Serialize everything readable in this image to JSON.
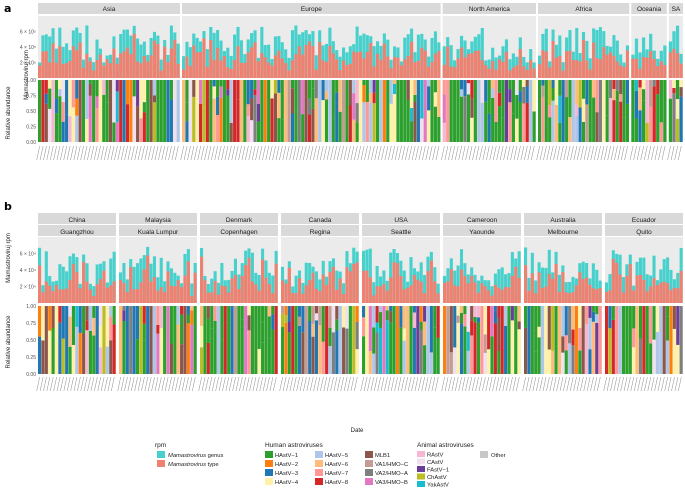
{
  "chart_data": [
    {
      "panel_label": "a",
      "type": "bar",
      "facets": [
        "Asia",
        "Europe",
        "North America",
        "Africa",
        "Oceania",
        "SA"
      ],
      "top": {
        "ylabel": "Mamastroviruj rpm",
        "yticks": [
          "2 × 10⁵",
          "4 × 10⁵",
          "6 × 10⁵"
        ],
        "series": [
          "Mamastrovirus genus",
          "Mamastrovirus type"
        ]
      },
      "bottom": {
        "ylabel": "Relative abundance",
        "yticks": [
          "0.00",
          "0.25",
          "0.50",
          "0.75",
          "1.00"
        ]
      }
    },
    {
      "panel_label": "b",
      "type": "bar",
      "facets": [
        {
          "country": "China",
          "city": "Guangzhou"
        },
        {
          "country": "Malaysia",
          "city": "Kuala Lumpur"
        },
        {
          "country": "Denmark",
          "city": "Copenhagen"
        },
        {
          "country": "Canada",
          "city": "Regina"
        },
        {
          "country": "USA",
          "city": "Seattle"
        },
        {
          "country": "Cameroon",
          "city": "Yaounde"
        },
        {
          "country": "Australia",
          "city": "Melbourne"
        },
        {
          "country": "Ecuador",
          "city": "Quito"
        }
      ],
      "top": {
        "ylabel": "Mamastroviruj rpm",
        "yticks": [
          "2 × 10⁴",
          "4 × 10⁴",
          "6 × 10⁴"
        ]
      },
      "bottom": {
        "ylabel": "Relative abundance",
        "yticks": [
          "0.00",
          "0.25",
          "0.50",
          "0.75",
          "1.00"
        ]
      },
      "xlabel": "Date"
    }
  ],
  "legend": {
    "rpm_title": "rpm",
    "rpm_items": [
      {
        "prefix": "",
        "italic": "Mamastrovirus",
        "suffix": " genus",
        "color": "#48d1cc"
      },
      {
        "prefix": "",
        "italic": "Mamastrovirus",
        "suffix": " type",
        "color": "#f08070"
      }
    ],
    "human_title": "Human astroviruses",
    "human_items": [
      {
        "label": "HAstV−1",
        "color": "#2ca02c"
      },
      {
        "label": "HAstV−2",
        "color": "#ff7f0e"
      },
      {
        "label": "HAstV−3",
        "color": "#1f77b4"
      },
      {
        "label": "HAstV−4",
        "color": "#fff2a8"
      },
      {
        "label": "HAstV−5",
        "color": "#aec7e8"
      },
      {
        "label": "HAstV−6",
        "color": "#ffbb78"
      },
      {
        "label": "HAstV−7",
        "color": "#ff9896"
      },
      {
        "label": "HAstV−8",
        "color": "#d62728"
      },
      {
        "label": "MLB1",
        "color": "#8c564b"
      },
      {
        "label": "VA1/HMO−C",
        "color": "#c49c94"
      },
      {
        "label": "VA2/HMO−A",
        "color": "#7f7f7f"
      },
      {
        "label": "VA3/HMO−B",
        "color": "#e377c2"
      }
    ],
    "animal_title": "Animal astroviruses",
    "animal_items": [
      {
        "label": "RAstV",
        "color": "#f7b6d2"
      },
      {
        "label": "CAstV",
        "color": "#f0e0f0"
      },
      {
        "label": "FAstV−1",
        "color": "#6a3d9a"
      },
      {
        "label": "ChAstV",
        "color": "#bcbd22"
      },
      {
        "label": "YakAstV",
        "color": "#17becf"
      }
    ],
    "other_label": "Other",
    "other_color": "#c7c7c7"
  }
}
